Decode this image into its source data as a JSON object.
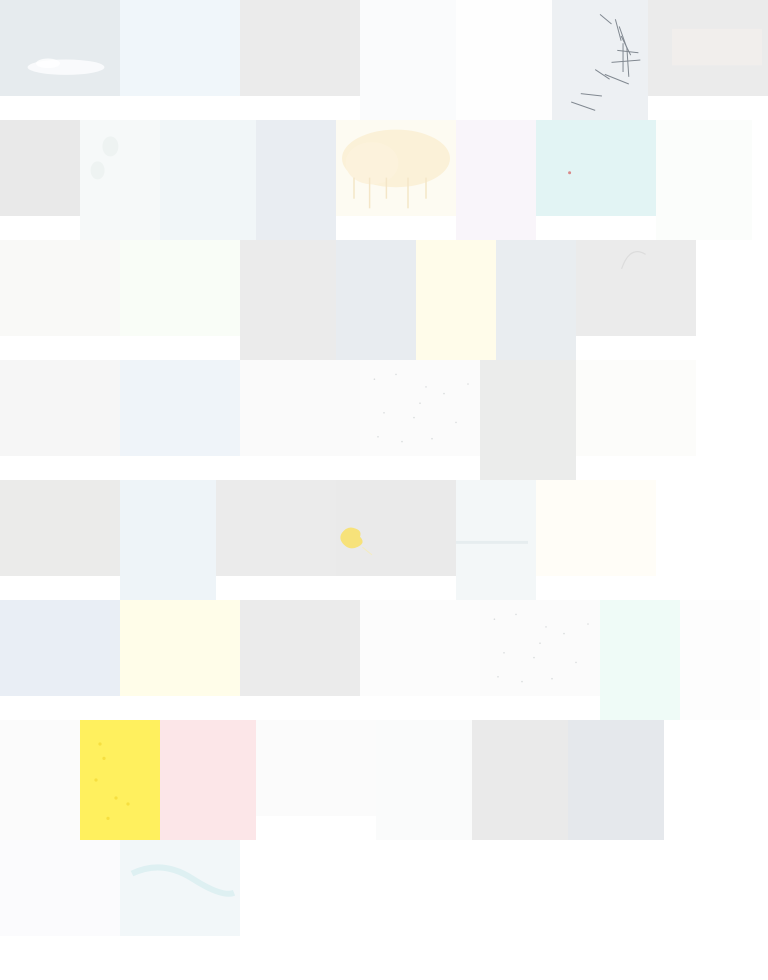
{
  "gallery": {
    "rows": [
      {
        "tiles": [
          {
            "color": "#e6ebee",
            "texture": "smudge-white"
          },
          {
            "color": "#f0f6fa"
          },
          {
            "color": "#ebebeb"
          },
          {
            "color": "#fafbfc"
          },
          {
            "color": "#fefefe"
          },
          {
            "color": "#edf0f3",
            "texture": "ink-strokes"
          },
          {
            "color": "#ebebeb",
            "texture": "faint-band"
          }
        ]
      },
      {
        "tiles": [
          {
            "color": "#e9e9e9"
          },
          {
            "color": "#f6f9f9",
            "texture": "faint-spots"
          },
          {
            "color": "#f1f6f8"
          },
          {
            "color": "#e9edf2"
          },
          {
            "color": "#fdfbf2",
            "texture": "cloud-drips"
          },
          {
            "color": "#f9f5fa"
          },
          {
            "color": "#e2f4f4",
            "texture": "red-dot"
          },
          {
            "color": "#fbfdfb"
          }
        ]
      },
      {
        "tiles": [
          {
            "color": "#f9f9f7"
          },
          {
            "color": "#f9fdf7"
          },
          {
            "color": "#ebebeb"
          },
          {
            "color": "#e8ecf0"
          },
          {
            "color": "#fffcea"
          },
          {
            "color": "#e9edf0"
          },
          {
            "color": "#ebebeb",
            "texture": "faint-arc"
          }
        ]
      },
      {
        "tiles": [
          {
            "color": "#f6f6f6"
          },
          {
            "color": "#eff4f9"
          },
          {
            "color": "#fafafa"
          },
          {
            "color": "#fbfbfb",
            "texture": "speckles"
          },
          {
            "color": "#ebeceb"
          },
          {
            "color": "#fcfcfa"
          }
        ]
      },
      {
        "tiles": [
          {
            "color": "#ebebea"
          },
          {
            "color": "#eef4f8"
          },
          {
            "color": "#ebebeb"
          },
          {
            "color": "#eaeaea",
            "texture": "yellow-blot"
          },
          {
            "color": "#f3f7f8",
            "texture": "faint-line"
          },
          {
            "color": "#fffdf7"
          }
        ]
      },
      {
        "tiles": [
          {
            "color": "#e9eef5"
          },
          {
            "color": "#fffde9"
          },
          {
            "color": "#ebebeb"
          },
          {
            "color": "#fcfcfc"
          },
          {
            "color": "#fbfbfb",
            "texture": "speckles"
          },
          {
            "color": "#effbf7"
          },
          {
            "color": "#fdfdfd"
          }
        ]
      },
      {
        "tiles": [
          {
            "color": "#fbfbfb"
          },
          {
            "color": "#fff05e",
            "texture": "yellow-spots"
          },
          {
            "color": "#fce6e8"
          },
          {
            "color": "#fbfbfb"
          },
          {
            "color": "#fafbfb"
          },
          {
            "color": "#eaeaea"
          },
          {
            "color": "#e5e8ec"
          }
        ]
      },
      {
        "tiles": [
          {
            "color": "#fbfbfd"
          },
          {
            "color": "#f2f7f9",
            "texture": "teal-wash"
          }
        ]
      }
    ]
  }
}
